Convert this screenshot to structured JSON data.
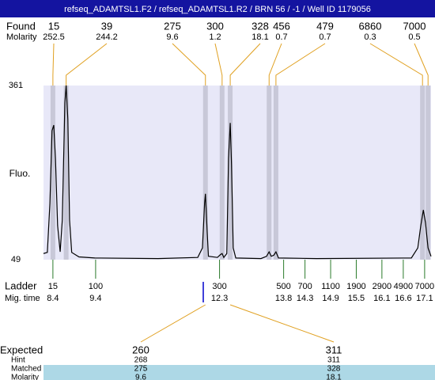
{
  "header": {
    "title": "refseq_ADAMTSL1.F2 / refseq_ADAMTSL1.R2 / BRN 56 / -1 / Well ID 1179056"
  },
  "chart_data": {
    "type": "line",
    "ylabel": "Fluo.",
    "ylim": [
      49,
      361
    ],
    "yticks": [
      49,
      361
    ],
    "xlim": [
      8.18,
      17.25
    ],
    "trace": {
      "color": "#000000",
      "x": [
        8.18,
        8.27,
        8.33,
        8.38,
        8.42,
        8.46,
        8.51,
        8.57,
        8.62,
        8.68,
        8.71,
        8.75,
        8.79,
        8.84,
        9.01,
        9.38,
        10.86,
        11.79,
        11.9,
        11.95,
        11.97,
        12.01,
        12.04,
        12.25,
        12.32,
        12.36,
        12.4,
        12.47,
        12.51,
        12.55,
        12.58,
        12.62,
        12.68,
        13.27,
        13.4,
        13.46,
        13.51,
        13.57,
        13.62,
        13.68,
        14.57,
        16.79,
        16.94,
        17.01,
        17.07,
        17.12,
        17.18,
        17.25
      ],
      "values": [
        60,
        62,
        150,
        280,
        290,
        230,
        110,
        63,
        120,
        330,
        361,
        300,
        120,
        62,
        54,
        52,
        51,
        53,
        70,
        150,
        167,
        100,
        55,
        53,
        58,
        60,
        53,
        60,
        230,
        294,
        220,
        70,
        52,
        51,
        55,
        63,
        55,
        57,
        63,
        52,
        51,
        52,
        70,
        110,
        138,
        115,
        70,
        55
      ]
    },
    "found": {
      "label": "Found",
      "molarity_label": "Molarity",
      "sizes": [
        15,
        39,
        275,
        300,
        328,
        456,
        479,
        6860,
        7000
      ],
      "molarity": [
        252.5,
        244.2,
        9.6,
        1.2,
        18.1,
        0.7,
        0.7,
        0.3,
        0.5
      ],
      "times": [
        8.4,
        8.71,
        11.97,
        12.36,
        12.55,
        13.46,
        13.62,
        17.05,
        17.18
      ]
    },
    "ladder": {
      "label": "Ladder",
      "time_label": "Mig. time",
      "sizes": [
        15,
        100,
        300,
        500,
        700,
        1100,
        1900,
        2900,
        4900,
        7000
      ],
      "times": [
        8.4,
        9.4,
        12.3,
        13.8,
        14.3,
        14.9,
        15.5,
        16.1,
        16.6,
        17.1
      ]
    },
    "expected": {
      "labels": [
        "Expected",
        "Hint",
        "Matched",
        "Molarity"
      ],
      "expected": [
        260,
        311
      ],
      "hint": [
        268,
        311
      ],
      "matched": [
        275,
        328
      ],
      "molarity": [
        9.6,
        18.1
      ]
    }
  }
}
